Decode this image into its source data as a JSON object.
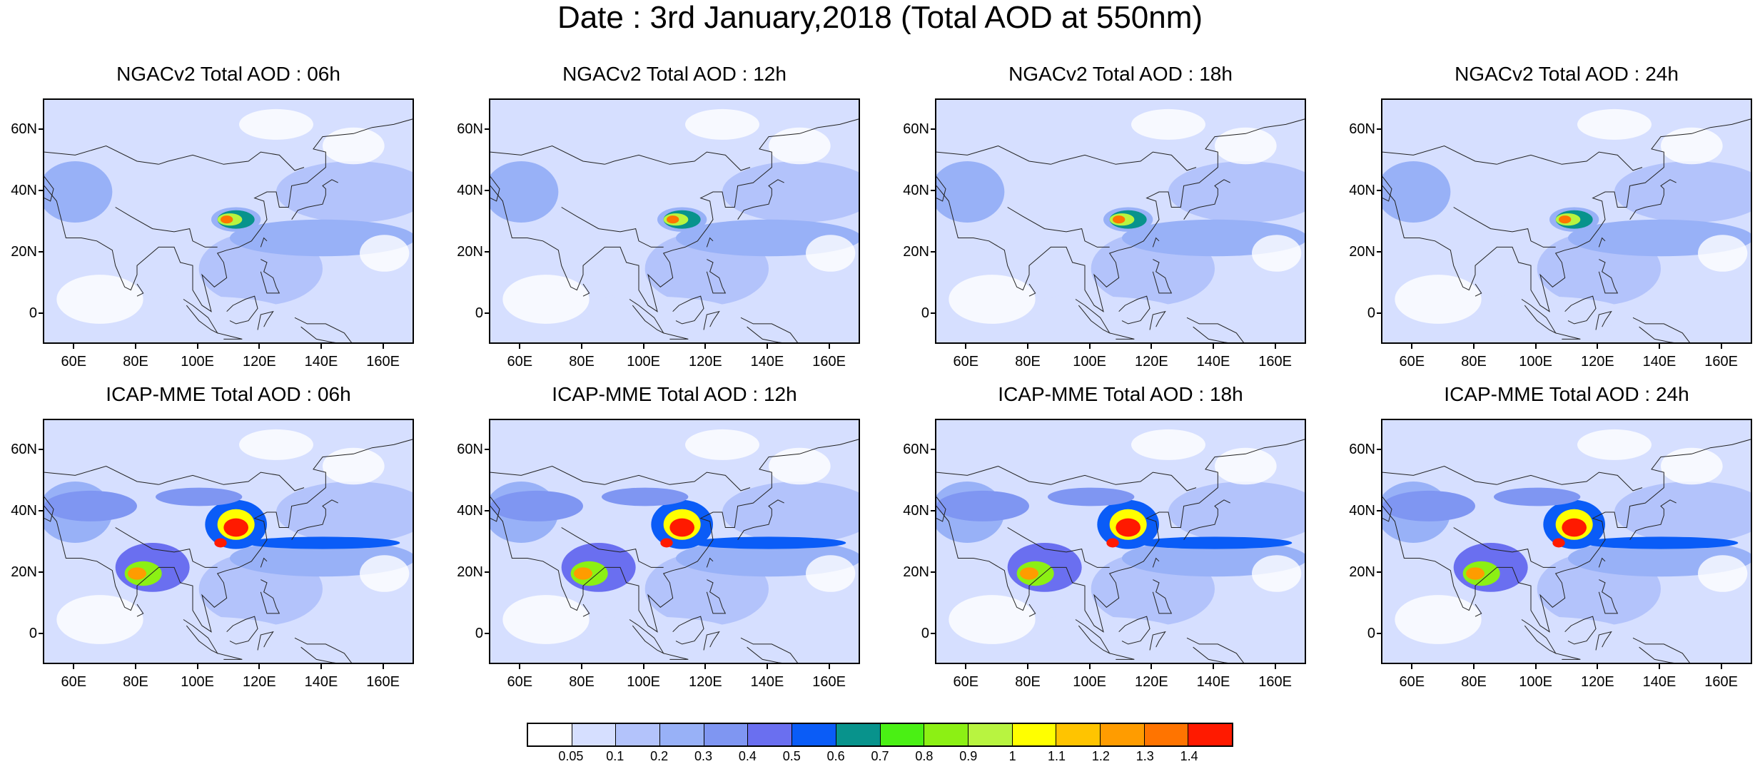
{
  "title": "Date : 3rd January,2018 (Total AOD at 550nm)",
  "panels": [
    {
      "title": "NGACv2 Total AOD : 06h",
      "model": "NGACv2",
      "hour": "06h"
    },
    {
      "title": "NGACv2 Total AOD : 12h",
      "model": "NGACv2",
      "hour": "12h"
    },
    {
      "title": "NGACv2 Total AOD : 18h",
      "model": "NGACv2",
      "hour": "18h"
    },
    {
      "title": "NGACv2 Total AOD : 24h",
      "model": "NGACv2",
      "hour": "24h"
    },
    {
      "title": "ICAP-MME Total AOD : 06h",
      "model": "ICAP-MME",
      "hour": "06h"
    },
    {
      "title": "ICAP-MME Total AOD : 12h",
      "model": "ICAP-MME",
      "hour": "12h"
    },
    {
      "title": "ICAP-MME Total AOD : 18h",
      "model": "ICAP-MME",
      "hour": "18h"
    },
    {
      "title": "ICAP-MME Total AOD : 24h",
      "model": "ICAP-MME",
      "hour": "24h"
    }
  ],
  "axes": {
    "lon_labels": [
      "60E",
      "80E",
      "100E",
      "120E",
      "140E",
      "160E"
    ],
    "lon_values": [
      60,
      80,
      100,
      120,
      140,
      160
    ],
    "lat_labels": [
      "60N",
      "40N",
      "20N",
      "0"
    ],
    "lat_values": [
      60,
      40,
      20,
      0
    ],
    "lon_range": [
      50,
      170
    ],
    "lat_range": [
      -10,
      70
    ]
  },
  "colorbar": {
    "labels": [
      "0.05",
      "0.1",
      "0.2",
      "0.3",
      "0.4",
      "0.5",
      "0.6",
      "0.7",
      "0.8",
      "0.9",
      "1",
      "1.1",
      "1.2",
      "1.3",
      "1.4"
    ],
    "colors": [
      "#ffffff",
      "#d6dfff",
      "#b3c3fb",
      "#98b1f7",
      "#7f96f2",
      "#6a6ff0",
      "#0a5cf7",
      "#08938c",
      "#4af014",
      "#8cf014",
      "#b8f440",
      "#ffff00",
      "#ffc400",
      "#ff9c00",
      "#ff7400",
      "#ff1a00"
    ]
  }
}
